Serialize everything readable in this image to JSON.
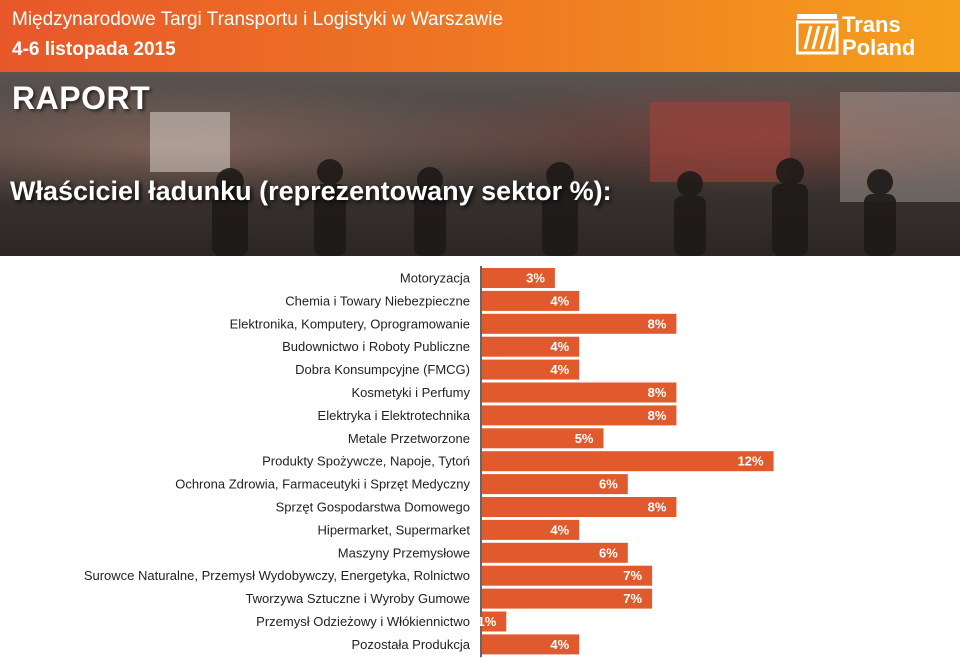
{
  "header": {
    "event_title": "Międzynarodowe Targi Transportu i Logistyki w Warszawie",
    "event_dates": "4-6 listopada 2015",
    "logo_line1": "Trans",
    "logo_line2": "Poland"
  },
  "banner": {
    "report_label": "RAPORT"
  },
  "colors": {
    "header_start": "#e8572a",
    "header_end": "#f6a01c",
    "bar": "#e05a2d"
  },
  "chart_data": {
    "type": "bar",
    "orientation": "horizontal",
    "title": "Właściciel ładunku (reprezentowany sektor %):",
    "categories": [
      "Motoryzacja",
      "Chemia i Towary Niebezpieczne",
      "Elektronika, Komputery, Oprogramowanie",
      "Budownictwo i Roboty Publiczne",
      "Dobra Konsumpcyjne (FMCG)",
      "Kosmetyki i Perfumy",
      "Elektryka i Elektrotechnika",
      "Metale Przetworzone",
      "Produkty Spożywcze, Napoje, Tytoń",
      "Ochrona Zdrowia, Farmaceutyki i Sprzęt Medyczny",
      "Sprzęt Gospodarstwa Domowego",
      "Hipermarket, Supermarket",
      "Maszyny Przemysłowe",
      "Surowce Naturalne, Przemysł Wydobywczy, Energetyka, Rolnictwo",
      "Tworzywa Sztuczne i Wyroby Gumowe",
      "Przemysł Odzieżowy i Włókiennictwo",
      "Pozostała Produkcja"
    ],
    "values": [
      3,
      4,
      8,
      4,
      4,
      8,
      8,
      5,
      12,
      6,
      8,
      4,
      6,
      7,
      7,
      1,
      4
    ],
    "labels": [
      "3%",
      "4%",
      "8%",
      "4%",
      "4%",
      "8%",
      "8%",
      "5%",
      "12%",
      "6%",
      "8%",
      "4%",
      "6%",
      "7%",
      "7%",
      "1%",
      "4%"
    ],
    "unit": "%",
    "xlim": [
      0,
      12
    ],
    "grid": false,
    "legend": "none"
  }
}
